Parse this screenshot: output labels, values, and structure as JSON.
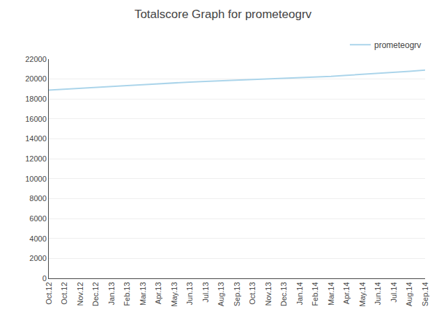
{
  "chart_data": {
    "type": "line",
    "title": "Totalscore Graph for prometeogrv",
    "categories": [
      "Oct.12",
      "Oct.12",
      "Nov.12",
      "Dec.12",
      "Jan.13",
      "Feb.13",
      "Mar.13",
      "Apr.13",
      "May.13",
      "Jun.13",
      "Jul.13",
      "Aug.13",
      "Sep.13",
      "Oct.13",
      "Nov.13",
      "Dec.13",
      "Jan.14",
      "Feb.14",
      "Mar.14",
      "Apr.14",
      "May.14",
      "Jun.14",
      "Jul.14",
      "Aug.14",
      "Sep.14"
    ],
    "series": [
      {
        "name": "prometeogrv",
        "color": "#aad4ea",
        "values": [
          18900,
          19000,
          19100,
          19200,
          19270,
          19350,
          19430,
          19530,
          19620,
          19700,
          19760,
          19820,
          19870,
          19940,
          20010,
          20060,
          20130,
          20200,
          20270,
          20380,
          20470,
          20560,
          20670,
          20780,
          20900
        ]
      }
    ],
    "ylim": [
      0,
      22000
    ],
    "yticks": [
      0,
      2000,
      4000,
      6000,
      8000,
      10000,
      12000,
      14000,
      16000,
      18000,
      20000,
      22000
    ],
    "grid": true,
    "legend": "upper right"
  }
}
